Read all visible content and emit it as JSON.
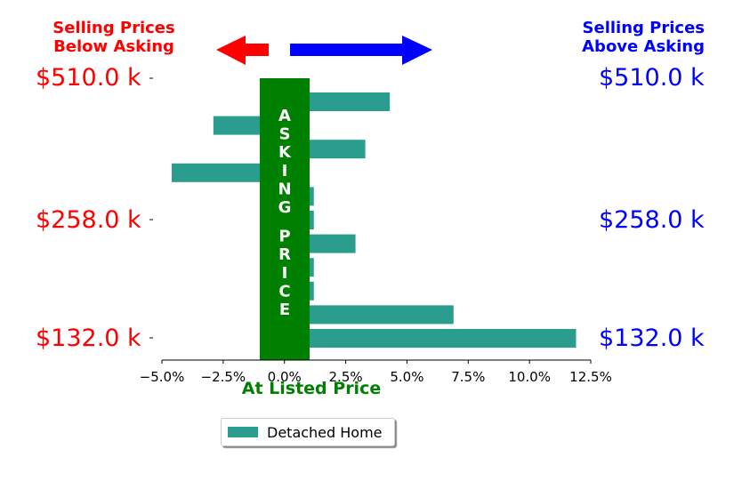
{
  "header": {
    "left_line1": "Selling Prices",
    "left_line2": "Below Asking",
    "right_line1": "Selling Prices",
    "right_line2": "Above Asking"
  },
  "price_labels": {
    "top": "$510.0 k",
    "middle": "$258.0 k",
    "bottom": "$132.0 k"
  },
  "band_label": "ASKING PRICE",
  "listed_label": "At Listed Price",
  "colors": {
    "bar": "#2a9d8f",
    "band": "#008000",
    "below": "#ff0000",
    "above": "#0000ff"
  },
  "chart_data": {
    "type": "bar",
    "orientation": "horizontal",
    "series": [
      {
        "name": "Detached Home",
        "values": [
          4.3,
          -2.9,
          3.3,
          -4.6,
          1.2,
          1.2,
          2.9,
          1.2,
          1.2,
          6.9,
          11.9
        ]
      }
    ],
    "xlim": [
      -5.0,
      12.5
    ],
    "xticks": [
      "−5.0%",
      "−2.5%",
      "0.0%",
      "2.5%",
      "5.0%",
      "7.5%",
      "10.0%",
      "12.5%"
    ],
    "xtick_values": [
      -5.0,
      -2.5,
      0.0,
      2.5,
      5.0,
      7.5,
      10.0,
      12.5
    ],
    "ytick_labels": [
      "$510.0 k",
      "$258.0 k",
      "$132.0 k"
    ],
    "legend": "bottom-center",
    "grid": false
  }
}
